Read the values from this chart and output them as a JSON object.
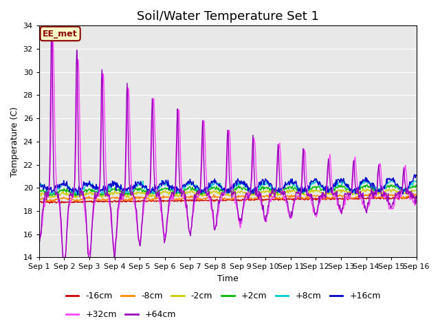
{
  "title": "Soil/Water Temperature Set 1",
  "xlabel": "Time",
  "ylabel": "Temperature (C)",
  "annotation": "EE_met",
  "xlim": [
    0,
    15
  ],
  "ylim": [
    14,
    34
  ],
  "yticks": [
    14,
    16,
    18,
    20,
    22,
    24,
    26,
    28,
    30,
    32,
    34
  ],
  "xtick_labels": [
    "Sep 1",
    "Sep 2",
    "Sep 3",
    "Sep 4",
    "Sep 5",
    "Sep 6",
    "Sep 7",
    "Sep 8",
    "Sep 9",
    "Sep 10",
    "Sep 11",
    "Sep 12",
    "Sep 13",
    "Sep 14",
    "Sep 15",
    "Sep 16"
  ],
  "colors": {
    "-16cm": "#cc0000",
    "-8cm": "#ff8800",
    "-2cm": "#cccc00",
    "+2cm": "#00bb00",
    "+8cm": "#00cccc",
    "+16cm": "#0000cc",
    "+32cm": "#ff44ff",
    "+64cm": "#9900bb"
  },
  "background_color": "#e8e8e8",
  "fig_color": "#ffffff",
  "title_fontsize": 13,
  "axis_fontsize": 9,
  "tick_fontsize": 8,
  "legend_fontsize": 9
}
